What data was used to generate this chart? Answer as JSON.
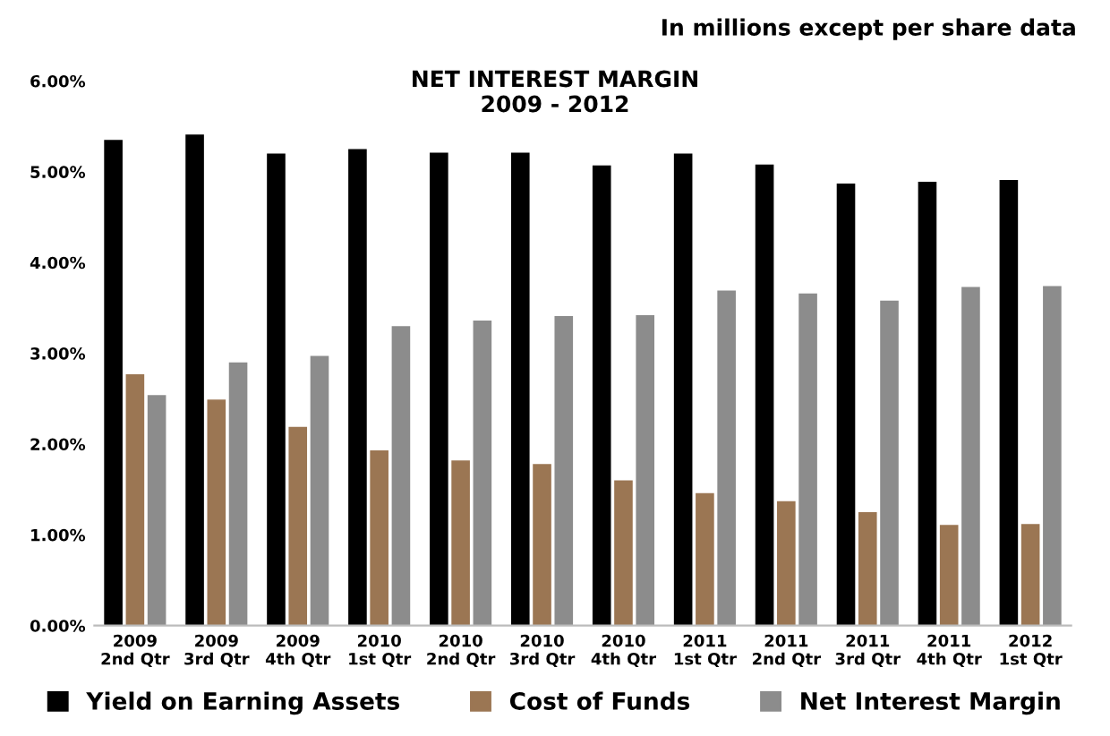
{
  "chart_data": {
    "type": "bar",
    "title": "NET INTEREST MARGIN\n2009 - 2012",
    "annotations": [
      "In millions except per share data"
    ],
    "categories": [
      "2009\n2nd Qtr",
      "2009\n3rd Qtr",
      "2009\n4th Qtr",
      "2010\n1st Qtr",
      "2010\n2nd Qtr",
      "2010\n3rd Qtr",
      "2010\n4th Qtr",
      "2011\n1st Qtr",
      "2011\n2nd Qtr",
      "2011\n3rd Qtr",
      "2011\n4th Qtr",
      "2012\n1st Qtr"
    ],
    "series": [
      {
        "name": "Yield on Earning Assets",
        "color": "#000000",
        "values": [
          5.35,
          5.41,
          5.2,
          5.25,
          5.21,
          5.21,
          5.07,
          5.2,
          5.08,
          4.87,
          4.89,
          4.91
        ]
      },
      {
        "name": "Cost of Funds",
        "color": "#9b7653",
        "values": [
          2.77,
          2.49,
          2.19,
          1.93,
          1.82,
          1.78,
          1.6,
          1.46,
          1.37,
          1.25,
          1.11,
          1.12
        ]
      },
      {
        "name": "Net Interest Margin",
        "color": "#8c8c8c",
        "values": [
          2.54,
          2.9,
          2.97,
          3.3,
          3.36,
          3.41,
          3.42,
          3.69,
          3.66,
          3.58,
          3.73,
          3.74
        ]
      }
    ],
    "ylim": [
      0,
      6
    ],
    "yticks": [
      {
        "value": 0,
        "label": "0.00%"
      },
      {
        "value": 1,
        "label": "1.00%"
      },
      {
        "value": 2,
        "label": "2.00%"
      },
      {
        "value": 3,
        "label": "3.00%"
      },
      {
        "value": 4,
        "label": "4.00%"
      },
      {
        "value": 5,
        "label": "5.00%"
      },
      {
        "value": 6,
        "label": "6.00%"
      }
    ],
    "grid": false,
    "legend": "bottom"
  }
}
